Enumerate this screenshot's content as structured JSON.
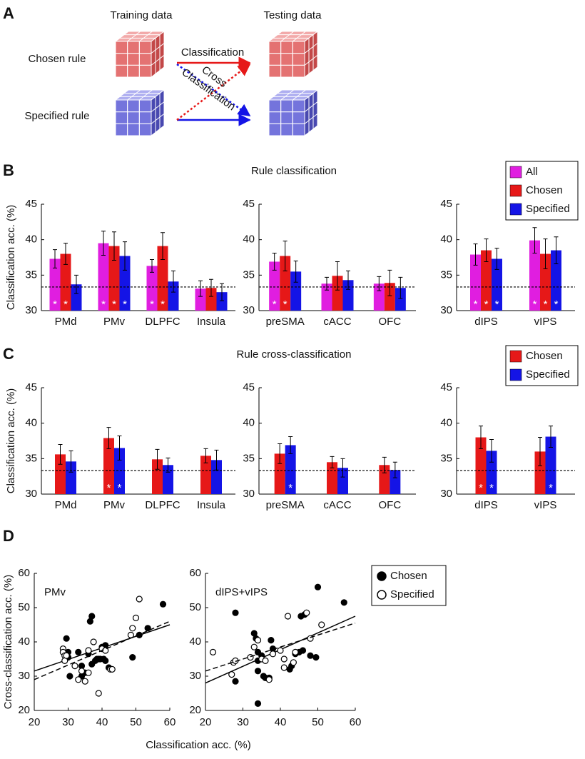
{
  "diagram": {
    "label": "A",
    "columns": [
      "Training data",
      "Testing data"
    ],
    "rows": [
      "Chosen rule",
      "Specified rule"
    ],
    "classification": "Classification",
    "cross": [
      "Cross",
      "Classification"
    ]
  },
  "chart_data": [
    {
      "type": "bar",
      "panel": "B",
      "title": "Rule classification",
      "ylabel": "Classification acc. (%)",
      "ylim": [
        30,
        45
      ],
      "yticks": [
        30,
        35,
        40,
        45
      ],
      "chance": 33.33,
      "series": [
        {
          "name": "All",
          "color": "#e01ee0"
        },
        {
          "name": "Chosen",
          "color": "#e61818"
        },
        {
          "name": "Specified",
          "color": "#1414e6"
        }
      ],
      "groups": [
        {
          "categories": [
            "PMd",
            "PMv",
            "DLPFC",
            "Insula"
          ],
          "values": [
            [
              37.3,
              39.5,
              36.3,
              33.1
            ],
            [
              38.0,
              39.1,
              39.1,
              33.2
            ],
            [
              33.7,
              37.7,
              34.1,
              32.6
            ]
          ],
          "errors": [
            [
              1.3,
              1.7,
              0.9,
              1.1
            ],
            [
              1.5,
              2.0,
              1.9,
              1.2
            ],
            [
              1.3,
              2.0,
              1.5,
              1.2
            ]
          ],
          "significance": [
            [
              "*",
              "*",
              "*",
              null
            ],
            [
              "*",
              "*",
              "*",
              null
            ],
            [
              null,
              "*",
              null,
              null
            ]
          ]
        },
        {
          "categories": [
            "preSMA",
            "cACC",
            "OFC"
          ],
          "values": [
            [
              36.9,
              33.8,
              33.8
            ],
            [
              37.7,
              34.9,
              33.9
            ],
            [
              35.5,
              34.3,
              33.2
            ]
          ],
          "errors": [
            [
              1.2,
              0.9,
              1.0
            ],
            [
              2.1,
              2.0,
              1.8
            ],
            [
              1.5,
              1.3,
              1.5
            ]
          ],
          "significance": [
            [
              "*",
              null,
              null
            ],
            [
              "*",
              null,
              null
            ],
            [
              null,
              null,
              null
            ]
          ]
        },
        {
          "categories": [
            "dIPS",
            "vIPS"
          ],
          "values": [
            [
              37.9,
              39.9
            ],
            [
              38.5,
              38.0
            ],
            [
              37.3,
              38.5
            ]
          ],
          "errors": [
            [
              1.5,
              1.8
            ],
            [
              1.6,
              2.1
            ],
            [
              1.5,
              1.9
            ]
          ],
          "significance": [
            [
              "*",
              "*"
            ],
            [
              "*",
              "*"
            ],
            [
              "*",
              "*"
            ]
          ]
        }
      ]
    },
    {
      "type": "bar",
      "panel": "C",
      "title": "Rule cross-classification",
      "ylabel": "Classification acc. (%)",
      "ylim": [
        30,
        45
      ],
      "yticks": [
        30,
        35,
        40,
        45
      ],
      "chance": 33.33,
      "series": [
        {
          "name": "Chosen",
          "color": "#e61818"
        },
        {
          "name": "Specified",
          "color": "#1414e6"
        }
      ],
      "groups": [
        {
          "categories": [
            "PMd",
            "PMv",
            "DLPFC",
            "Insula"
          ],
          "values": [
            [
              35.6,
              37.9,
              34.9,
              35.4
            ],
            [
              34.6,
              36.5,
              34.1,
              34.8
            ]
          ],
          "errors": [
            [
              1.4,
              1.5,
              1.4,
              1.0
            ],
            [
              1.5,
              1.7,
              1.0,
              1.4
            ]
          ],
          "significance": [
            [
              null,
              "*",
              null,
              null
            ],
            [
              null,
              "*",
              null,
              null
            ]
          ]
        },
        {
          "categories": [
            "preSMA",
            "cACC",
            "OFC"
          ],
          "values": [
            [
              35.7,
              34.5,
              34.1
            ],
            [
              36.9,
              33.7,
              33.4
            ]
          ],
          "errors": [
            [
              1.4,
              0.8,
              1.1
            ],
            [
              1.2,
              1.3,
              1.1
            ]
          ],
          "significance": [
            [
              null,
              null,
              null
            ],
            [
              "*",
              null,
              null
            ]
          ]
        },
        {
          "categories": [
            "dIPS",
            "vIPS"
          ],
          "values": [
            [
              38.0,
              36.0
            ],
            [
              36.1,
              38.1
            ]
          ],
          "errors": [
            [
              1.6,
              2.0
            ],
            [
              1.6,
              1.5
            ]
          ],
          "significance": [
            [
              "*",
              null
            ],
            [
              "*",
              "*"
            ]
          ]
        }
      ]
    },
    {
      "type": "scatter",
      "panel": "D",
      "xlabel": "Classification acc. (%)",
      "ylabel": "Cross-classification acc. (%)",
      "xlim": [
        20,
        60
      ],
      "ylim": [
        20,
        60
      ],
      "xticks": [
        20,
        30,
        40,
        50,
        60
      ],
      "yticks": [
        20,
        30,
        40,
        50,
        60
      ],
      "legend": [
        {
          "name": "Chosen",
          "marker": "filled",
          "line_style": "solid",
          "color": "#000000"
        },
        {
          "name": "Specified",
          "marker": "open",
          "line_style": "dashed",
          "color": "#000000"
        }
      ],
      "subplots": [
        {
          "title": "PMv",
          "series": [
            {
              "x": [
                29.5,
                30,
                30,
                30.5,
                33,
                34,
                34,
                35,
                36,
                36.5,
                37,
                37,
                38,
                38.5,
                39,
                39.5,
                40,
                40.5,
                41,
                41,
                42,
                49,
                51,
                53.5,
                58
              ],
              "y": [
                41,
                37,
                35.5,
                30,
                37,
                33,
                30,
                31,
                36.5,
                46,
                47.5,
                33.5,
                34.5,
                35,
                35,
                35,
                38.5,
                35,
                39,
                34.5,
                32.5,
                35.5,
                42,
                44,
                51
              ],
              "fit": {
                "x": [
                  20,
                  60
                ],
                "y": [
                  31.5,
                  45
                ]
              }
            },
            {
              "x": [
                28.5,
                28.5,
                29,
                29,
                29.5,
                32,
                33,
                34,
                35,
                36,
                36,
                37.5,
                39,
                40,
                41,
                42.5,
                43,
                48.5,
                49,
                50,
                51
              ],
              "y": [
                38,
                37,
                36,
                34.5,
                36,
                33,
                29,
                31.5,
                28.5,
                31,
                37.5,
                40,
                25,
                38,
                37.5,
                32,
                32,
                42,
                44,
                47,
                52.5
              ],
              "fit": {
                "x": [
                  20,
                  60
                ],
                "y": [
                  29,
                  46
                ]
              }
            }
          ]
        },
        {
          "title": "dIPS+vIPS",
          "series": [
            {
              "x": [
                28,
                28,
                33,
                33.5,
                34,
                34,
                34,
                34,
                35,
                35.5,
                36,
                37,
                37.5,
                38,
                42.5,
                43,
                44,
                45,
                45.5,
                46,
                46.5,
                48,
                49.5,
                50,
                57
              ],
              "y": [
                48.5,
                28.5,
                42.5,
                41,
                37,
                34.5,
                31.5,
                22,
                36,
                30,
                29.5,
                29.5,
                40.5,
                38,
                32,
                33,
                36.5,
                37,
                47.5,
                37.5,
                48,
                36,
                35.5,
                56,
                51.5
              ],
              "fit": {
                "x": [
                  20,
                  60
                ],
                "y": [
                  28,
                  47.5
                ]
              }
            },
            {
              "x": [
                22,
                27,
                27.5,
                28,
                32,
                33,
                34,
                35,
                36,
                37,
                38,
                40,
                41,
                41,
                42,
                43.5,
                44,
                47,
                48,
                51
              ],
              "y": [
                37,
                30.5,
                34,
                34.5,
                35.5,
                38.5,
                40.5,
                35,
                34.5,
                29,
                36.5,
                37.5,
                35,
                32.5,
                47.5,
                34,
                37,
                48.5,
                41,
                45
              ],
              "fit": {
                "x": [
                  20,
                  60
                ],
                "y": [
                  31.5,
                  45.5
                ]
              }
            }
          ]
        }
      ]
    }
  ]
}
